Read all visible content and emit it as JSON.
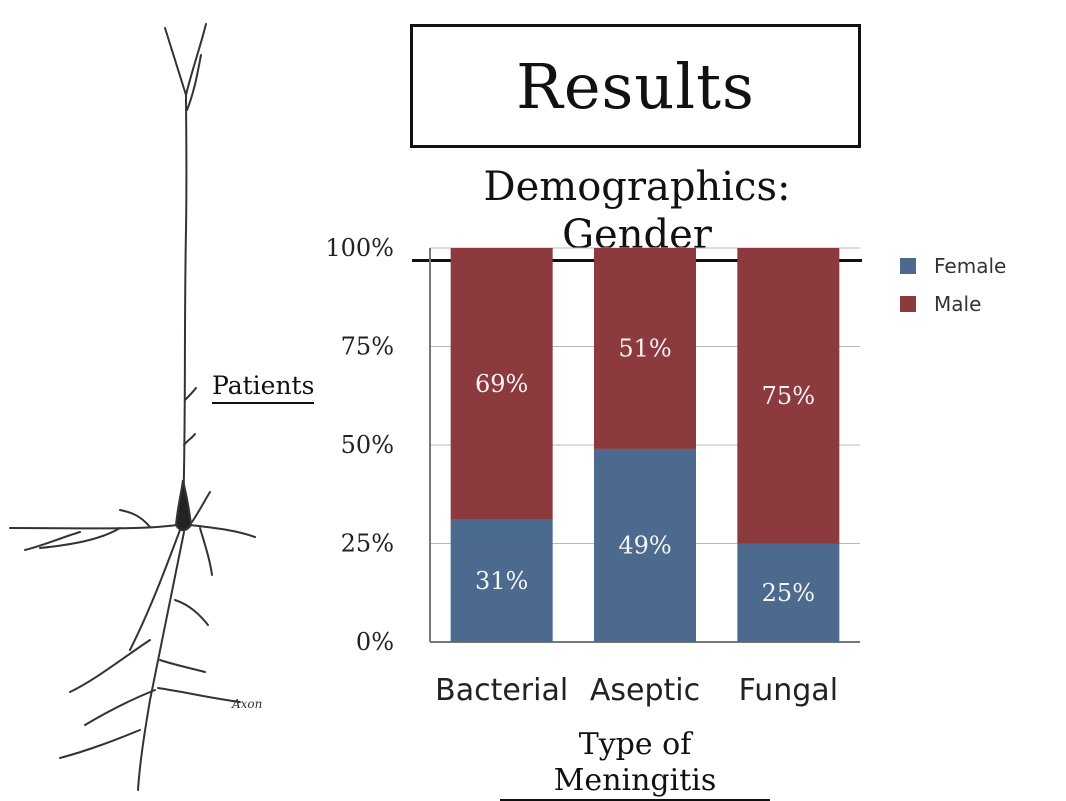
{
  "title": "Results",
  "chart_data": {
    "type": "bar",
    "stacked": true,
    "percent": true,
    "title": "Demographics: Gender",
    "xlabel": "Type of Meningitis",
    "ylabel": "Patients",
    "categories": [
      "Bacterial",
      "Aseptic",
      "Fungal"
    ],
    "series": [
      {
        "name": "Female",
        "values": [
          31,
          49,
          25
        ],
        "labels": [
          "31%",
          "49%",
          "25%"
        ],
        "color": "#4b6a8e"
      },
      {
        "name": "Male",
        "values": [
          69,
          51,
          75
        ],
        "labels": [
          "69%",
          "51%",
          "75%"
        ],
        "color": "#8c3a3e"
      }
    ],
    "yticks": [
      "0%",
      "25%",
      "50%",
      "75%",
      "100%"
    ],
    "ylim": [
      0,
      100
    ],
    "grid": true,
    "legend": "top-right"
  },
  "illustration": {
    "axon_label": "Axon"
  }
}
